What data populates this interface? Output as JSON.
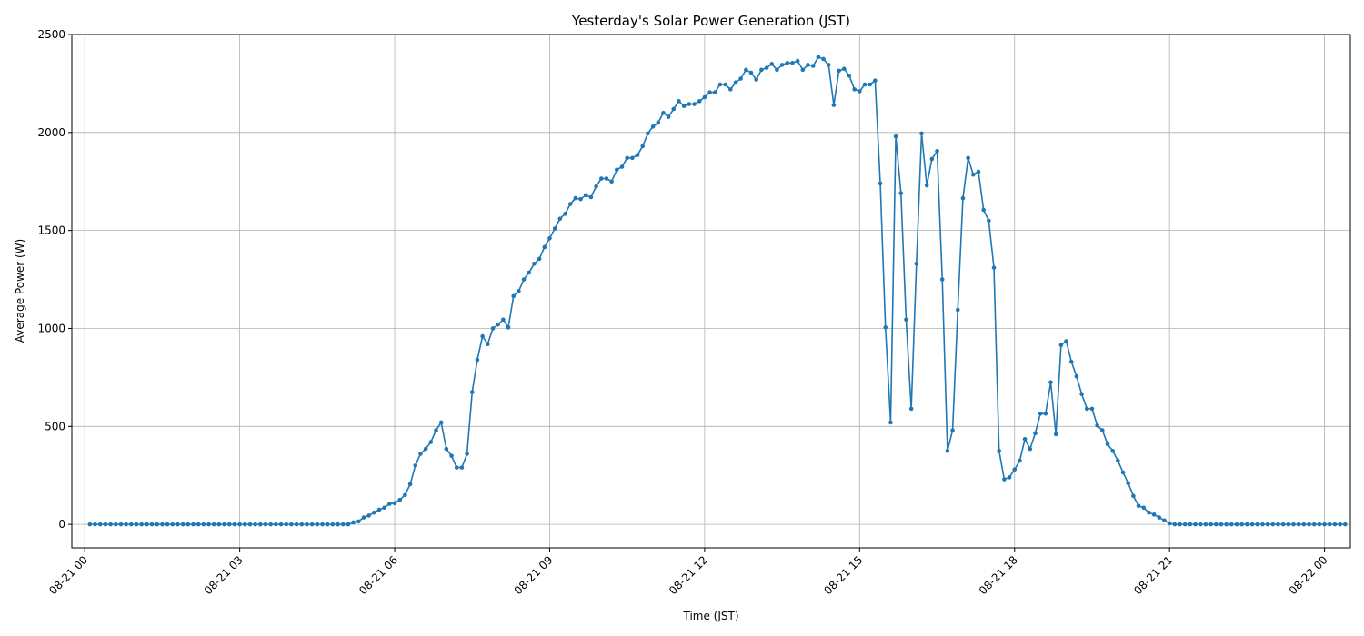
{
  "chart_data": {
    "type": "line",
    "title": "Yesterday's Solar Power Generation (JST)",
    "xlabel": "Time (JST)",
    "ylabel": "Average Power (W)",
    "xlim": [
      -0.25,
      24.5
    ],
    "ylim": [
      -120,
      2500
    ],
    "grid": true,
    "color": "#1f77b4",
    "xticks": [
      {
        "label": "08-21 00",
        "v": 0
      },
      {
        "label": "08-21 03",
        "v": 3
      },
      {
        "label": "08-21 06",
        "v": 6
      },
      {
        "label": "08-21 09",
        "v": 9
      },
      {
        "label": "08-21 12",
        "v": 12
      },
      {
        "label": "08-21 15",
        "v": 15
      },
      {
        "label": "08-21 18",
        "v": 18
      },
      {
        "label": "08-21 21",
        "v": 21
      },
      {
        "label": "08-22 00",
        "v": 24
      }
    ],
    "yticks": [
      0,
      500,
      1000,
      1500,
      2000,
      2500
    ],
    "series": [
      {
        "points": [
          [
            0.1,
            0
          ],
          [
            0.2,
            0
          ],
          [
            0.3,
            0
          ],
          [
            0.4,
            0
          ],
          [
            0.5,
            0
          ],
          [
            0.6,
            0
          ],
          [
            0.7,
            0
          ],
          [
            0.8,
            0
          ],
          [
            0.9,
            0
          ],
          [
            1.0,
            0
          ],
          [
            1.1,
            0
          ],
          [
            1.2,
            0
          ],
          [
            1.3,
            0
          ],
          [
            1.4,
            0
          ],
          [
            1.5,
            0
          ],
          [
            1.6,
            0
          ],
          [
            1.7,
            0
          ],
          [
            1.8,
            0
          ],
          [
            1.9,
            0
          ],
          [
            2.0,
            0
          ],
          [
            2.1,
            0
          ],
          [
            2.2,
            0
          ],
          [
            2.3,
            0
          ],
          [
            2.4,
            0
          ],
          [
            2.5,
            0
          ],
          [
            2.6,
            0
          ],
          [
            2.7,
            0
          ],
          [
            2.8,
            0
          ],
          [
            2.9,
            0
          ],
          [
            3.0,
            0
          ],
          [
            3.1,
            0
          ],
          [
            3.2,
            0
          ],
          [
            3.3,
            0
          ],
          [
            3.4,
            0
          ],
          [
            3.5,
            0
          ],
          [
            3.6,
            0
          ],
          [
            3.7,
            0
          ],
          [
            3.8,
            0
          ],
          [
            3.9,
            0
          ],
          [
            4.0,
            0
          ],
          [
            4.1,
            0
          ],
          [
            4.2,
            0
          ],
          [
            4.3,
            0
          ],
          [
            4.4,
            0
          ],
          [
            4.5,
            0
          ],
          [
            4.6,
            0
          ],
          [
            4.7,
            0
          ],
          [
            4.8,
            0
          ],
          [
            4.9,
            0
          ],
          [
            5.0,
            0
          ],
          [
            5.1,
            0
          ],
          [
            5.2,
            10
          ],
          [
            5.3,
            15
          ],
          [
            5.4,
            35
          ],
          [
            5.5,
            45
          ],
          [
            5.6,
            60
          ],
          [
            5.7,
            75
          ],
          [
            5.8,
            85
          ],
          [
            5.9,
            105
          ],
          [
            6.0,
            108
          ],
          [
            6.1,
            125
          ],
          [
            6.2,
            150
          ],
          [
            6.3,
            205
          ],
          [
            6.4,
            300
          ],
          [
            6.5,
            360
          ],
          [
            6.6,
            385
          ],
          [
            6.7,
            420
          ],
          [
            6.8,
            480
          ],
          [
            6.9,
            520
          ],
          [
            7.0,
            385
          ],
          [
            7.1,
            350
          ],
          [
            7.2,
            290
          ],
          [
            7.3,
            290
          ],
          [
            7.4,
            360
          ],
          [
            7.5,
            675
          ],
          [
            7.6,
            840
          ],
          [
            7.7,
            960
          ],
          [
            7.8,
            920
          ],
          [
            7.9,
            1000
          ],
          [
            8.0,
            1020
          ],
          [
            8.1,
            1045
          ],
          [
            8.2,
            1005
          ],
          [
            8.3,
            1165
          ],
          [
            8.4,
            1190
          ],
          [
            8.5,
            1250
          ],
          [
            8.6,
            1285
          ],
          [
            8.7,
            1330
          ],
          [
            8.8,
            1355
          ],
          [
            8.9,
            1415
          ],
          [
            9.0,
            1460
          ],
          [
            9.1,
            1510
          ],
          [
            9.2,
            1560
          ],
          [
            9.3,
            1585
          ],
          [
            9.4,
            1635
          ],
          [
            9.5,
            1665
          ],
          [
            9.6,
            1660
          ],
          [
            9.7,
            1680
          ],
          [
            9.8,
            1670
          ],
          [
            9.9,
            1725
          ],
          [
            10.0,
            1765
          ],
          [
            10.1,
            1765
          ],
          [
            10.2,
            1750
          ],
          [
            10.3,
            1810
          ],
          [
            10.4,
            1825
          ],
          [
            10.5,
            1870
          ],
          [
            10.6,
            1870
          ],
          [
            10.7,
            1885
          ],
          [
            10.8,
            1930
          ],
          [
            10.9,
            1995
          ],
          [
            11.0,
            2030
          ],
          [
            11.1,
            2050
          ],
          [
            11.2,
            2100
          ],
          [
            11.3,
            2080
          ],
          [
            11.4,
            2120
          ],
          [
            11.5,
            2160
          ],
          [
            11.6,
            2135
          ],
          [
            11.7,
            2145
          ],
          [
            11.8,
            2145
          ],
          [
            11.9,
            2160
          ],
          [
            12.0,
            2180
          ],
          [
            12.1,
            2205
          ],
          [
            12.2,
            2205
          ],
          [
            12.3,
            2245
          ],
          [
            12.4,
            2245
          ],
          [
            12.5,
            2220
          ],
          [
            12.6,
            2255
          ],
          [
            12.7,
            2275
          ],
          [
            12.8,
            2320
          ],
          [
            12.9,
            2305
          ],
          [
            13.0,
            2270
          ],
          [
            13.1,
            2320
          ],
          [
            13.2,
            2330
          ],
          [
            13.3,
            2350
          ],
          [
            13.4,
            2320
          ],
          [
            13.5,
            2345
          ],
          [
            13.6,
            2355
          ],
          [
            13.7,
            2355
          ],
          [
            13.8,
            2365
          ],
          [
            13.9,
            2320
          ],
          [
            14.0,
            2345
          ],
          [
            14.1,
            2340
          ],
          [
            14.2,
            2385
          ],
          [
            14.3,
            2375
          ],
          [
            14.4,
            2345
          ],
          [
            14.5,
            2140
          ],
          [
            14.6,
            2315
          ],
          [
            14.7,
            2325
          ],
          [
            14.8,
            2290
          ],
          [
            14.9,
            2220
          ],
          [
            15.0,
            2210
          ],
          [
            15.1,
            2245
          ],
          [
            15.2,
            2245
          ],
          [
            15.3,
            2265
          ],
          [
            15.4,
            1740
          ],
          [
            15.5,
            1005
          ],
          [
            15.6,
            520
          ],
          [
            15.7,
            1980
          ],
          [
            15.8,
            1690
          ],
          [
            15.9,
            1045
          ],
          [
            16.0,
            590
          ],
          [
            16.1,
            1330
          ],
          [
            16.2,
            1995
          ],
          [
            16.3,
            1730
          ],
          [
            16.4,
            1865
          ],
          [
            16.5,
            1905
          ],
          [
            16.6,
            1250
          ],
          [
            16.7,
            375
          ],
          [
            16.8,
            480
          ],
          [
            16.9,
            1095
          ],
          [
            17.0,
            1665
          ],
          [
            17.1,
            1870
          ],
          [
            17.2,
            1785
          ],
          [
            17.3,
            1800
          ],
          [
            17.4,
            1605
          ],
          [
            17.5,
            1550
          ],
          [
            17.6,
            1310
          ],
          [
            17.7,
            375
          ],
          [
            17.8,
            230
          ],
          [
            17.9,
            240
          ],
          [
            18.0,
            280
          ],
          [
            18.1,
            325
          ],
          [
            18.2,
            435
          ],
          [
            18.3,
            385
          ],
          [
            18.4,
            465
          ],
          [
            18.5,
            565
          ],
          [
            18.6,
            565
          ],
          [
            18.7,
            725
          ],
          [
            18.8,
            460
          ],
          [
            18.9,
            915
          ],
          [
            19.0,
            935
          ],
          [
            19.1,
            830
          ],
          [
            19.2,
            755
          ],
          [
            19.3,
            665
          ],
          [
            19.4,
            590
          ],
          [
            19.5,
            590
          ],
          [
            19.6,
            505
          ],
          [
            19.7,
            480
          ],
          [
            19.8,
            410
          ],
          [
            19.9,
            375
          ],
          [
            20.0,
            325
          ],
          [
            20.1,
            265
          ],
          [
            20.2,
            210
          ],
          [
            20.3,
            145
          ],
          [
            20.4,
            95
          ],
          [
            20.5,
            85
          ],
          [
            20.6,
            60
          ],
          [
            20.7,
            50
          ],
          [
            20.8,
            35
          ],
          [
            20.9,
            20
          ],
          [
            21.0,
            5
          ],
          [
            21.1,
            0
          ],
          [
            21.2,
            0
          ],
          [
            21.3,
            0
          ],
          [
            21.4,
            0
          ],
          [
            21.5,
            0
          ],
          [
            21.6,
            0
          ],
          [
            21.7,
            0
          ],
          [
            21.8,
            0
          ],
          [
            21.9,
            0
          ],
          [
            22.0,
            0
          ],
          [
            22.1,
            0
          ],
          [
            22.2,
            0
          ],
          [
            22.3,
            0
          ],
          [
            22.4,
            0
          ],
          [
            22.5,
            0
          ],
          [
            22.6,
            0
          ],
          [
            22.7,
            0
          ],
          [
            22.8,
            0
          ],
          [
            22.9,
            0
          ],
          [
            23.0,
            0
          ],
          [
            23.1,
            0
          ],
          [
            23.2,
            0
          ],
          [
            23.3,
            0
          ],
          [
            23.4,
            0
          ],
          [
            23.5,
            0
          ],
          [
            23.6,
            0
          ],
          [
            23.7,
            0
          ],
          [
            23.8,
            0
          ],
          [
            23.9,
            0
          ],
          [
            24.0,
            0
          ],
          [
            24.1,
            0
          ],
          [
            24.2,
            0
          ],
          [
            24.3,
            0
          ],
          [
            24.4,
            0
          ]
        ]
      }
    ]
  }
}
